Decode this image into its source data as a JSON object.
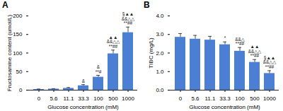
{
  "chart_data": [
    {
      "type": "bar",
      "title": "A",
      "x_label": "Glucose concentration (mM)",
      "y_label": "Fructosamine content (umol/L)",
      "categories": [
        "0",
        "5.6",
        "11.1",
        "33.3",
        "100",
        "500",
        "1000"
      ],
      "values": [
        2,
        3,
        5,
        12,
        35,
        98,
        155
      ],
      "errors": [
        1,
        1,
        2,
        3,
        5,
        10,
        15
      ],
      "annotations": [
        null,
        null,
        null,
        [
          "&"
        ],
        [
          "&",
          "**#"
        ],
        [
          "▲▲",
          "&&△△",
          "**##"
        ],
        [
          "§▲▲",
          "&&△△",
          "**##"
        ]
      ],
      "color": "#4a7fd4",
      "ylim": [
        0,
        200
      ],
      "yticks": [
        0,
        50,
        100,
        150,
        200
      ]
    },
    {
      "type": "bar",
      "title": "B",
      "x_label": "Glucose concentration (mM)",
      "y_label": "TIBC (mg/L)",
      "categories": [
        "0",
        "5.6",
        "11.1",
        "33.3",
        "100",
        "500",
        "1000"
      ],
      "values": [
        2.85,
        2.75,
        2.7,
        2.45,
        2.1,
        1.5,
        0.9
      ],
      "errors": [
        0.2,
        0.2,
        0.2,
        0.15,
        0.2,
        0.15,
        0.15
      ],
      "annotations": [
        null,
        null,
        null,
        [
          "*"
        ],
        [
          "&&△",
          "**##"
        ],
        [
          "▲▲",
          "&&△△",
          "**##"
        ],
        [
          "§▲▲",
          "&&△△",
          "**##"
        ]
      ],
      "color": "#4a7fd4",
      "ylim": [
        0,
        4
      ],
      "yticks": [
        0,
        1,
        2,
        3,
        4
      ]
    }
  ]
}
